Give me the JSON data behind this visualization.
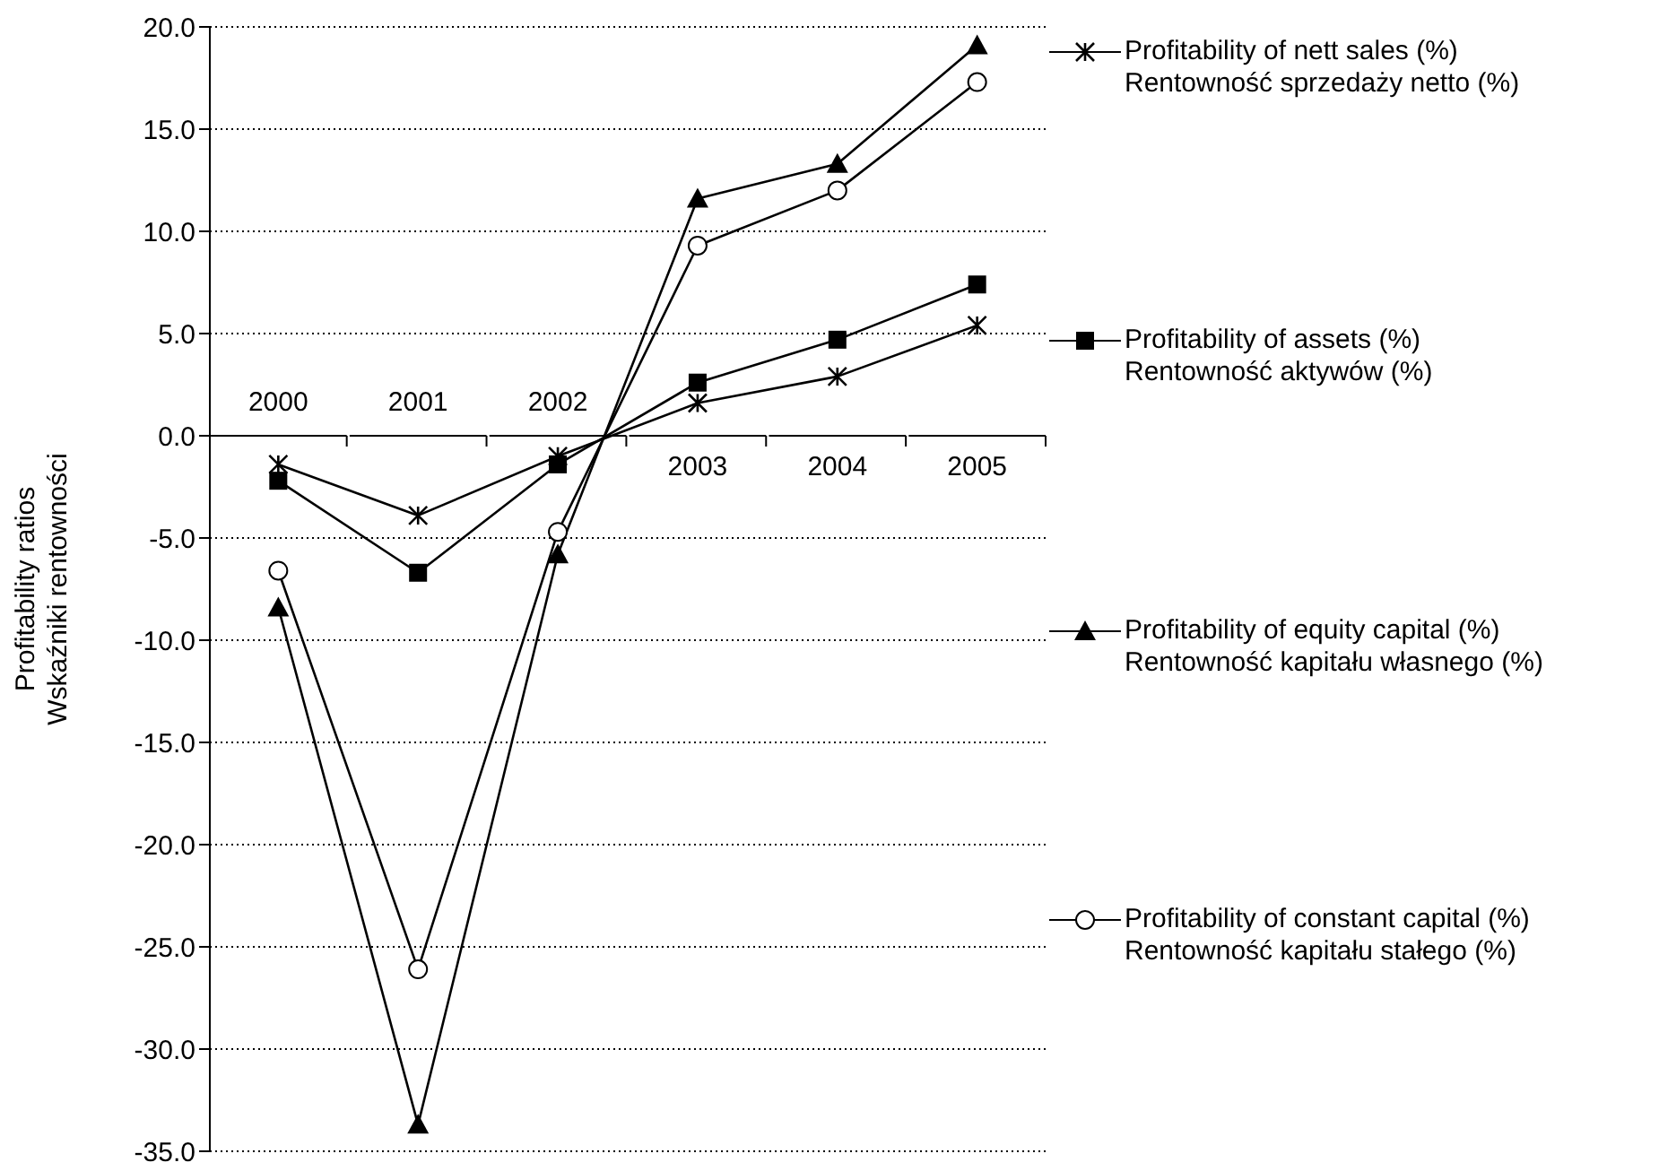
{
  "chart_data": {
    "type": "line",
    "ylabel": "Profitability ratios\nWskaźniki rentowności",
    "categories": [
      "2000",
      "2001",
      "2002",
      "2003",
      "2004",
      "2005"
    ],
    "series": [
      {
        "name": "Profitability of nett sales (%)\nRentowność sprzedaży netto (%)",
        "color": "#000000",
        "marker": "cross",
        "values": [
          -1.4,
          -3.9,
          -1.0,
          1.6,
          2.9,
          5.4
        ]
      },
      {
        "name": "Profitability of assets (%)\nRentowność aktywów (%)",
        "color": "#000000",
        "marker": "square",
        "values": [
          -2.2,
          -6.7,
          -1.4,
          2.6,
          4.7,
          7.4
        ]
      },
      {
        "name": "Profitability of equity capital (%)\nRentowność kapitału własnego (%)",
        "color": "#000000",
        "marker": "triangle",
        "values": [
          -8.4,
          -33.7,
          -5.8,
          11.6,
          13.3,
          19.1
        ]
      },
      {
        "name": "Profitability of constant capital (%)\nRentowność kapitału stałego (%)",
        "color": "#000000",
        "marker": "circle",
        "values": [
          -6.6,
          -26.1,
          -4.7,
          9.3,
          12.0,
          17.3
        ]
      }
    ],
    "ylim": [
      -35,
      20
    ],
    "yticks": [
      {
        "value": -35,
        "label": "-35.0"
      },
      {
        "value": -30,
        "label": "-30.0"
      },
      {
        "value": -25,
        "label": "-25.0"
      },
      {
        "value": -20,
        "label": "-20.0"
      },
      {
        "value": -15,
        "label": "-15.0"
      },
      {
        "value": -10,
        "label": "-10.0"
      },
      {
        "value": -5,
        "label": "-5.0"
      },
      {
        "value": 0,
        "label": "0.0"
      },
      {
        "value": 5,
        "label": "5.0"
      },
      {
        "value": 10,
        "label": "10.0"
      },
      {
        "value": 15,
        "label": "15.0"
      },
      {
        "value": 20,
        "label": "20.0"
      }
    ],
    "grid": "y",
    "legend": "right",
    "line_style": "solid"
  }
}
